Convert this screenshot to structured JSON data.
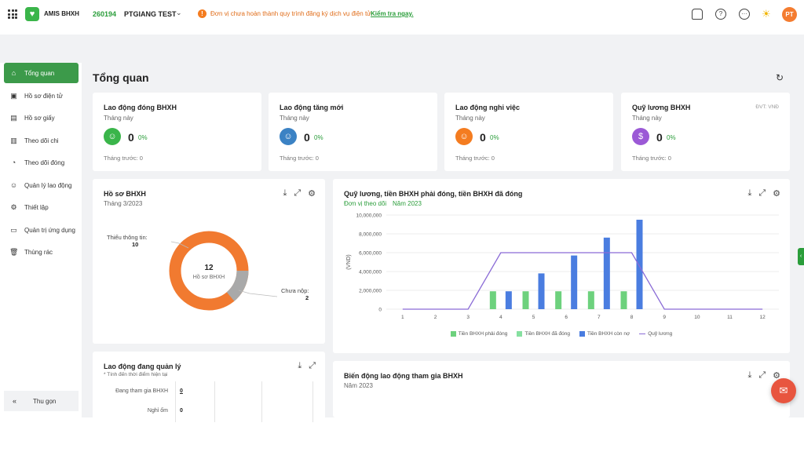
{
  "header": {
    "app_name": "AMIS BHXH",
    "company_code": "260194",
    "company_name": "PTGIANG TEST",
    "warning_text": "Đơn vị chưa hoàn thành quy trình đăng ký dịch vụ điện tử.",
    "warning_link": "Kiểm tra ngay.",
    "avatar_initials": "PT"
  },
  "sidebar": {
    "items": [
      {
        "label": "Tổng quan",
        "icon": "home-icon"
      },
      {
        "label": "Hồ sơ điện tử",
        "icon": "image-icon"
      },
      {
        "label": "Hồ sơ giấy",
        "icon": "file-icon"
      },
      {
        "label": "Theo dõi chi",
        "icon": "chart-icon"
      },
      {
        "label": "Theo dõi đóng",
        "icon": "pie-icon"
      },
      {
        "label": "Quản lý lao động",
        "icon": "users-icon"
      },
      {
        "label": "Thiết lập",
        "icon": "gear-icon"
      },
      {
        "label": "Quản trị ứng dụng",
        "icon": "monitor-icon"
      },
      {
        "label": "Thùng rác",
        "icon": "trash-icon"
      }
    ],
    "collapse_label": "Thu gọn"
  },
  "page": {
    "title": "Tổng quan"
  },
  "stats": [
    {
      "title": "Lao động đóng BHXH",
      "sub": "Tháng này",
      "value": "0",
      "pct": "0%",
      "prev": "Tháng trước: 0",
      "color": "#3ab54a",
      "icon": "user-icon"
    },
    {
      "title": "Lao động tăng mới",
      "sub": "Tháng này",
      "value": "0",
      "pct": "0%",
      "prev": "Tháng trước: 0",
      "color": "#3b82c4",
      "icon": "user-up-icon"
    },
    {
      "title": "Lao động nghỉ việc",
      "sub": "Tháng này",
      "value": "0",
      "pct": "0%",
      "prev": "Tháng trước: 0",
      "color": "#f47c20",
      "icon": "user-down-icon"
    },
    {
      "title": "Quỹ lương BHXH",
      "sub": "Tháng này",
      "value": "0",
      "pct": "0%",
      "prev": "Tháng trước: 0",
      "color": "#9b59d6",
      "icon": "dollar-icon",
      "unit": "ĐVT: VNĐ"
    }
  ],
  "ho_so": {
    "title": "Hồ sơ BHXH",
    "sub": "Tháng 3/2023",
    "center_value": "12",
    "center_label": "Hồ sơ BHXH",
    "label_missing": "Thiếu thông tin:",
    "value_missing": "10",
    "label_pending": "Chưa nộp:",
    "value_pending": "2"
  },
  "salary_chart": {
    "title": "Quỹ lương, tiền BHXH phải đóng, tiền BHXH đã đóng",
    "unit_label": "Đơn vị theo dõi",
    "year_label": "Năm 2023",
    "ylabel": "(VND)"
  },
  "chart_data": {
    "type": "bar",
    "categories": [
      "1",
      "2",
      "3",
      "4",
      "5",
      "6",
      "7",
      "8",
      "9",
      "10",
      "11",
      "12"
    ],
    "yticks": [
      "0",
      "2,000,000",
      "4,000,000",
      "6,000,000",
      "8,000,000",
      "10,000,000"
    ],
    "ylim": [
      0,
      10000000
    ],
    "ylabel": "(VND)",
    "series": [
      {
        "name": "Tiền BHXH phải đóng",
        "kind": "bar",
        "color": "#6dd17d",
        "values": [
          0,
          0,
          0,
          1900000,
          1900000,
          1900000,
          1900000,
          1900000,
          0,
          0,
          0,
          0
        ]
      },
      {
        "name": "Tiền BHXH đã đóng",
        "kind": "bar",
        "color": "#86e0a0",
        "values": [
          0,
          0,
          0,
          0,
          0,
          0,
          0,
          0,
          0,
          0,
          0,
          0
        ]
      },
      {
        "name": "Tiền BHXH còn nợ",
        "kind": "bar",
        "color": "#4a7de0",
        "values": [
          0,
          0,
          0,
          1900000,
          3800000,
          5700000,
          7600000,
          9500000,
          0,
          0,
          0,
          0
        ]
      },
      {
        "name": "Quỹ lương",
        "kind": "line",
        "color": "#8a6bd6",
        "values": [
          0,
          0,
          0,
          6000000,
          6000000,
          6000000,
          6000000,
          6000000,
          0,
          0,
          0,
          0
        ]
      }
    ]
  },
  "labor": {
    "title": "Lao động đang quản lý",
    "sub": "* Tính đến thời điểm hiện tại",
    "rows": [
      {
        "label": "Đang tham gia BHXH",
        "value": "0"
      },
      {
        "label": "Nghỉ ốm",
        "value": "0"
      }
    ]
  },
  "bien_dong": {
    "title": "Biến động lao động tham gia BHXH",
    "sub": "Năm 2023"
  }
}
